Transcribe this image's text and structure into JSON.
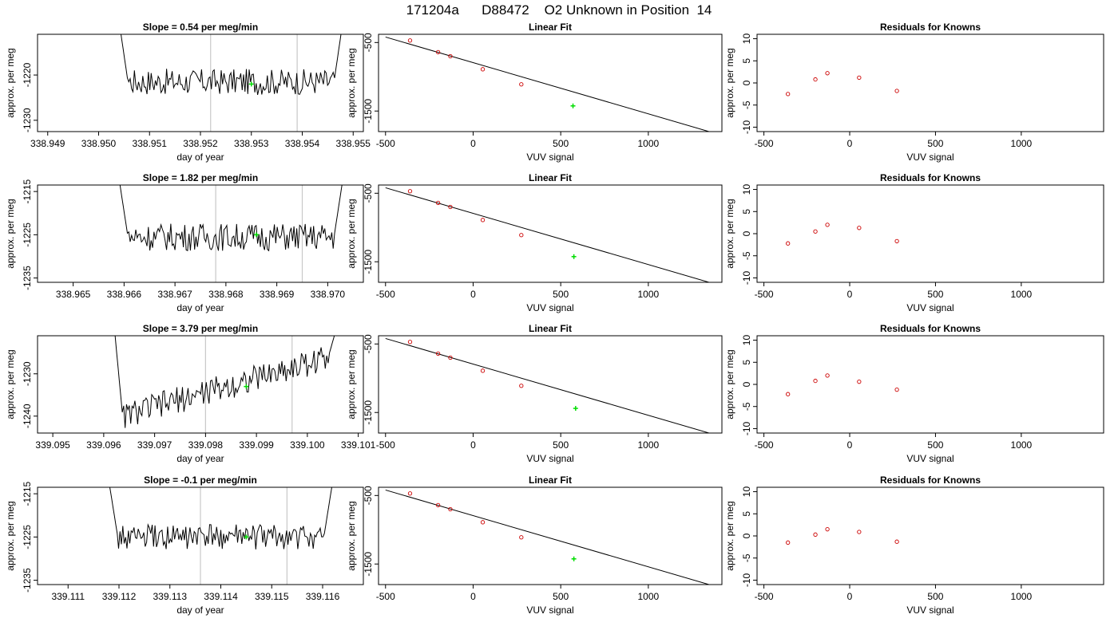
{
  "figure": {
    "title": "171204a      D88472    O2 Unknown in Position  14"
  },
  "chart_data": [
    {
      "type": "line",
      "title": "Slope =  0.54  per meg/min",
      "xlabel": "day of year",
      "ylabel": "approx. per meg",
      "xlim": [
        338.9488,
        338.9552
      ],
      "ylim": [
        -1232.5,
        -1211
      ],
      "xticks": [
        "338.949",
        "338.950",
        "338.951",
        "338.952",
        "338.953",
        "338.954",
        "338.955"
      ],
      "yticks": [
        "-1230",
        "-1220"
      ],
      "ytick_values": [
        -1230,
        -1220
      ],
      "xtick_values": [
        338.949,
        338.95,
        338.951,
        338.952,
        338.953,
        338.954,
        338.955
      ],
      "vlines": [
        338.9522,
        338.9539
      ],
      "x_start": 338.9504,
      "x_end": 338.9548,
      "y_start": -1208,
      "y_end": -1208,
      "baseline": -1221.5,
      "noise": 1.8,
      "trend": 0.0,
      "highlight": {
        "x": 338.953,
        "y": -1222
      },
      "grid": false
    },
    {
      "type": "scatter",
      "title": "Linear Fit",
      "xlabel": "VUV signal",
      "ylabel": "approx. per meg",
      "xlim": [
        -540,
        1420
      ],
      "ylim": [
        -1800,
        -380
      ],
      "xticks": [
        "-500",
        "0",
        "500",
        "1000"
      ],
      "xtick_values": [
        -500,
        0,
        500,
        1000
      ],
      "yticks": [
        "-500",
        "-1500"
      ],
      "ytick_values": [
        -500,
        -1500
      ],
      "knowns": {
        "x": [
          -360,
          -200,
          -130,
          55,
          275
        ],
        "y": [
          -470,
          -640,
          -700,
          -890,
          -1110
        ]
      },
      "unknown": {
        "x": 570,
        "y": -1425
      },
      "fit_line": {
        "x": [
          -500,
          1400
        ],
        "y": [
          -420,
          -1840
        ]
      },
      "grid": false
    },
    {
      "type": "scatter",
      "title": "Residuals for Knowns",
      "xlabel": "VUV signal",
      "ylabel": "approx. per meg",
      "xlim": [
        -540,
        1480
      ],
      "ylim": [
        -11,
        11
      ],
      "xticks": [
        "-500",
        "0",
        "500",
        "1000"
      ],
      "xtick_values": [
        -500,
        0,
        500,
        1000
      ],
      "yticks": [
        "-10",
        "-5",
        "0",
        "5",
        "10"
      ],
      "ytick_values": [
        -10,
        -5,
        0,
        5,
        10
      ],
      "knowns": {
        "x": [
          -360,
          -200,
          -130,
          55,
          275
        ],
        "y": [
          -2.5,
          0.8,
          2.2,
          1.2,
          -1.8
        ]
      },
      "grid": false
    },
    {
      "type": "line",
      "title": "Slope =  1.82  per meg/min",
      "xlabel": "day of year",
      "ylabel": "approx. per meg",
      "xlim": [
        338.9643,
        338.9707
      ],
      "ylim": [
        -1236,
        -1213.5
      ],
      "xticks": [
        "338.965",
        "338.966",
        "338.967",
        "338.968",
        "338.969",
        "338.970"
      ],
      "xtick_values": [
        338.965,
        338.966,
        338.967,
        338.968,
        338.969,
        338.97
      ],
      "yticks": [
        "-1235",
        "-1225",
        "-1215"
      ],
      "ytick_values": [
        -1235,
        -1225,
        -1215
      ],
      "vlines": [
        338.9678,
        338.9695
      ],
      "x_start": 338.9659,
      "x_end": 338.9703,
      "y_start": -1212,
      "y_end": -1212,
      "baseline": -1225.5,
      "noise": 2.0,
      "trend": 0.0,
      "highlight": {
        "x": 338.9686,
        "y": -1225
      },
      "grid": false
    },
    {
      "type": "scatter",
      "title": "Linear Fit",
      "xlabel": "VUV signal",
      "ylabel": "approx. per meg",
      "xlim": [
        -540,
        1420
      ],
      "ylim": [
        -1800,
        -380
      ],
      "xticks": [
        "-500",
        "0",
        "500",
        "1000"
      ],
      "xtick_values": [
        -500,
        0,
        500,
        1000
      ],
      "yticks": [
        "-500",
        "-1500"
      ],
      "ytick_values": [
        -500,
        -1500
      ],
      "knowns": {
        "x": [
          -360,
          -200,
          -130,
          55,
          275
        ],
        "y": [
          -470,
          -640,
          -700,
          -890,
          -1110
        ]
      },
      "unknown": {
        "x": 575,
        "y": -1425
      },
      "fit_line": {
        "x": [
          -500,
          1400
        ],
        "y": [
          -420,
          -1840
        ]
      },
      "grid": false
    },
    {
      "type": "scatter",
      "title": "Residuals for Knowns",
      "xlabel": "VUV signal",
      "ylabel": "approx. per meg",
      "xlim": [
        -540,
        1480
      ],
      "ylim": [
        -11,
        11
      ],
      "xticks": [
        "-500",
        "0",
        "500",
        "1000"
      ],
      "xtick_values": [
        -500,
        0,
        500,
        1000
      ],
      "yticks": [
        "-10",
        "-5",
        "0",
        "5",
        "10"
      ],
      "ytick_values": [
        -10,
        -5,
        0,
        5,
        10
      ],
      "knowns": {
        "x": [
          -360,
          -200,
          -130,
          55,
          275
        ],
        "y": [
          -2.2,
          0.5,
          2.0,
          1.3,
          -1.7
        ]
      },
      "grid": false
    },
    {
      "type": "line",
      "title": "Slope =  3.79  per meg/min",
      "xlabel": "day of year",
      "ylabel": "approx. per meg",
      "xlim": [
        339.0947,
        339.1011
      ],
      "ylim": [
        -1244,
        -1221
      ],
      "xticks": [
        "339.095",
        "339.096",
        "339.097",
        "339.098",
        "339.099",
        "339.100",
        "339.101"
      ],
      "xtick_values": [
        339.095,
        339.096,
        339.097,
        339.098,
        339.099,
        339.1,
        339.101
      ],
      "yticks": [
        "-1240",
        "-1230"
      ],
      "ytick_values": [
        -1240,
        -1230
      ],
      "vlines": [
        339.098,
        339.0997
      ],
      "x_start": 339.0962,
      "x_end": 339.1006,
      "y_start": -1218,
      "y_end": -1218,
      "baseline": -1240.5,
      "noise": 2.0,
      "trend": 15.0,
      "highlight": {
        "x": 339.0988,
        "y": -1233
      },
      "grid": false
    },
    {
      "type": "scatter",
      "title": "Linear Fit",
      "xlabel": "VUV signal",
      "ylabel": "approx. per meg",
      "xlim": [
        -540,
        1420
      ],
      "ylim": [
        -1800,
        -380
      ],
      "xticks": [
        "-500",
        "0",
        "500",
        "1000"
      ],
      "xtick_values": [
        -500,
        0,
        500,
        1000
      ],
      "yticks": [
        "-500",
        "-1500"
      ],
      "ytick_values": [
        -500,
        -1500
      ],
      "knowns": {
        "x": [
          -360,
          -200,
          -130,
          55,
          275
        ],
        "y": [
          -470,
          -640,
          -700,
          -890,
          -1110
        ]
      },
      "unknown": {
        "x": 585,
        "y": -1440
      },
      "fit_line": {
        "x": [
          -500,
          1400
        ],
        "y": [
          -420,
          -1840
        ]
      },
      "grid": false
    },
    {
      "type": "scatter",
      "title": "Residuals for Knowns",
      "xlabel": "VUV signal",
      "ylabel": "approx. per meg",
      "xlim": [
        -540,
        1480
      ],
      "ylim": [
        -11,
        11
      ],
      "xticks": [
        "-500",
        "0",
        "500",
        "1000"
      ],
      "xtick_values": [
        -500,
        0,
        500,
        1000
      ],
      "yticks": [
        "-10",
        "-5",
        "0",
        "5",
        "10"
      ],
      "ytick_values": [
        -10,
        -5,
        0,
        5,
        10
      ],
      "knowns": {
        "x": [
          -360,
          -200,
          -130,
          55,
          275
        ],
        "y": [
          -2.2,
          0.8,
          2.0,
          0.6,
          -1.2
        ]
      },
      "grid": false
    },
    {
      "type": "line",
      "title": "Slope =  -0.1  per meg/min",
      "xlabel": "day of year",
      "ylabel": "approx. per meg",
      "xlim": [
        339.1104,
        339.1168
      ],
      "ylim": [
        -1236,
        -1213.5
      ],
      "xticks": [
        "339.111",
        "339.112",
        "339.113",
        "339.114",
        "339.115",
        "339.116"
      ],
      "xtick_values": [
        339.111,
        339.112,
        339.113,
        339.114,
        339.115,
        339.116
      ],
      "yticks": [
        "-1235",
        "-1225",
        "-1215"
      ],
      "ytick_values": [
        -1235,
        -1225,
        -1215
      ],
      "vlines": [
        339.1136,
        339.1153
      ],
      "x_start": 339.1118,
      "x_end": 339.1162,
      "y_start": -1212,
      "y_end": -1212,
      "baseline": -1225.0,
      "noise": 1.8,
      "trend": 0.0,
      "highlight": {
        "x": 339.1145,
        "y": -1225
      },
      "grid": false
    },
    {
      "type": "scatter",
      "title": "Linear Fit",
      "xlabel": "VUV signal",
      "ylabel": "approx. per meg",
      "xlim": [
        -540,
        1420
      ],
      "ylim": [
        -1800,
        -380
      ],
      "xticks": [
        "-500",
        "0",
        "500",
        "1000"
      ],
      "xtick_values": [
        -500,
        0,
        500,
        1000
      ],
      "yticks": [
        "-500",
        "-1500"
      ],
      "ytick_values": [
        -500,
        -1500
      ],
      "knowns": {
        "x": [
          -360,
          -200,
          -130,
          55,
          275
        ],
        "y": [
          -470,
          -640,
          -700,
          -890,
          -1110
        ]
      },
      "unknown": {
        "x": 575,
        "y": -1425
      },
      "fit_line": {
        "x": [
          -500,
          1400
        ],
        "y": [
          -420,
          -1840
        ]
      },
      "grid": false
    },
    {
      "type": "scatter",
      "title": "Residuals for Knowns",
      "xlabel": "VUV signal",
      "ylabel": "approx. per meg",
      "xlim": [
        -540,
        1480
      ],
      "ylim": [
        -11,
        11
      ],
      "xticks": [
        "-500",
        "0",
        "500",
        "1000"
      ],
      "xtick_values": [
        -500,
        0,
        500,
        1000
      ],
      "yticks": [
        "-10",
        "-5",
        "0",
        "5",
        "10"
      ],
      "ytick_values": [
        -10,
        -5,
        0,
        5,
        10
      ],
      "knowns": {
        "x": [
          -360,
          -200,
          -130,
          55,
          275
        ],
        "y": [
          -1.5,
          0.3,
          1.5,
          0.9,
          -1.3
        ]
      },
      "grid": false
    }
  ],
  "colors": {
    "line": "#000000",
    "vline": "#c8c8c8",
    "highlight": "#00dd00",
    "known_marker": "#cc0000",
    "frame": "#000000"
  }
}
